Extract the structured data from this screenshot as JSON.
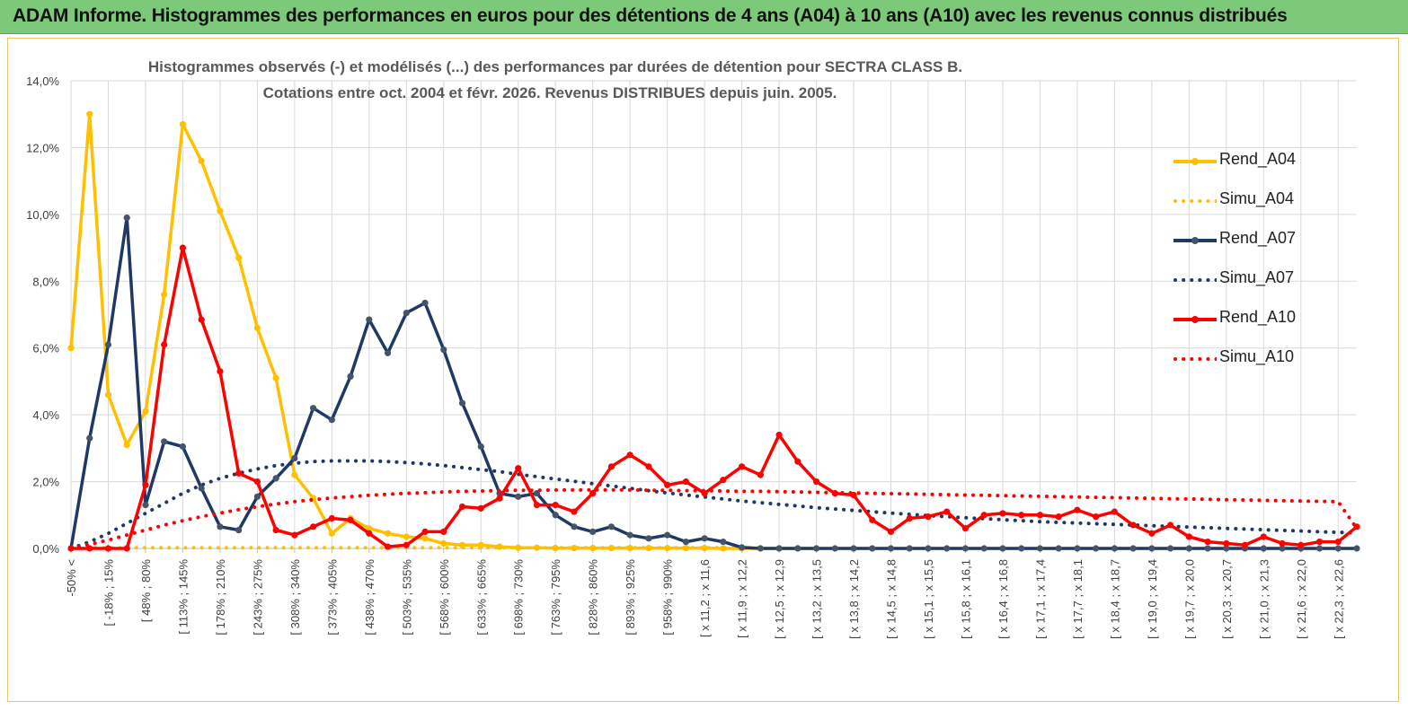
{
  "banner": {
    "title": "ADAM Informe. Histogrammes des performances en euros pour des détentions de 4 ans (A04) à 10 ans (A10) avec les revenus connus distribués",
    "color": "#7dc97a"
  },
  "chart_data": {
    "type": "line",
    "title_line1": "Histogrammes observés (-) et modélisés (...) des performances par durées de détention pour SECTRA CLASS B.",
    "title_line2": "Cotations entre oct. 2004 et févr. 2026. Revenus DISTRIBUES depuis juin. 2005.",
    "ylim": [
      0,
      14
    ],
    "y_ticks": [
      "0,0%",
      "2,0%",
      "4,0%",
      "6,0%",
      "8,0%",
      "10,0%",
      "12,0%",
      "14,0%"
    ],
    "y_tick_values": [
      0,
      2,
      4,
      6,
      8,
      10,
      12,
      14
    ],
    "x_labels": [
      "-50% <",
      "[ -18% ; 15%",
      "[ 48% ; 80%",
      "[ 113% ; 145%",
      "[ 178% ; 210%",
      "[ 243% ; 275%",
      "[ 308% ; 340%",
      "[ 373% ; 405%",
      "[ 438% ; 470%",
      "[ 503% ; 535%",
      "[ 568% ; 600%",
      "[ 633% ; 665%",
      "[ 698% ; 730%",
      "[ 763% ; 795%",
      "[ 828% ; 860%",
      "[ 893% ; 925%",
      "[ 958% ; 990%",
      "[ x 11,2 ; x 11,6",
      "[ x 11,9 ; x 12,2",
      "[ x 12,5 ; x 12,9",
      "[ x 13,2 ; x 13,5",
      "[ x 13,8 ; x 14,2",
      "[ x 14,5 ; x 14,8",
      "[ x 15,1 ; x 15,5",
      "[ x 15,8 ; x 16,1",
      "[ x 16,4 ; x 16,8",
      "[ x 17,1 ; x 17,4",
      "[ x 17,7 ; x 18,1",
      "[ x 18,4 ; x 18,7",
      "[ x 19,0 ; x 19,4",
      "[ x 19,7 ; x 20,0",
      "[ x 20,3 ; x 20,7",
      "[ x 21,0 ; x 21,3",
      "[ x 21,6 ; x 22,0",
      "[ x 22,3 ; x 22,6"
    ],
    "x_label_index_step": 2,
    "n_points": 70,
    "series": [
      {
        "name": "Rend_A04",
        "style": "solid",
        "color": "#ffc000",
        "values": [
          6.0,
          13.0,
          4.6,
          3.1,
          4.1,
          7.6,
          12.7,
          11.6,
          10.1,
          8.7,
          6.6,
          5.1,
          2.2,
          1.5,
          0.45,
          0.9,
          0.6,
          0.45,
          0.35,
          0.3,
          0.15,
          0.1,
          0.1,
          0.05,
          0.02,
          0.02,
          0.01,
          0.01,
          0.01,
          0.01,
          0.01,
          0.01,
          0.01,
          0.01,
          0.01,
          0.0,
          0.0,
          0.0,
          0.0,
          0.0,
          0.0
        ]
      },
      {
        "name": "Simu_A04",
        "style": "dotted",
        "color": "#ffc000",
        "values": [
          0.02,
          0.02,
          0.02,
          0.02,
          0.02,
          0.02,
          0.02,
          0.02,
          0.02,
          0.02,
          0.02,
          0.02,
          0.02,
          0.02,
          0.02,
          0.02,
          0.02,
          0.02,
          0.02,
          0.02,
          0.02,
          0.02,
          0.02,
          0.02,
          0.02,
          0.02,
          0.02,
          0.02,
          0.02,
          0.02,
          0.02,
          0.02,
          0.02,
          0.02,
          0.02,
          0.02,
          0.02,
          0.02
        ]
      },
      {
        "name": "Rend_A07",
        "style": "solid",
        "color": "#1f3864",
        "values": [
          0.0,
          3.3,
          6.1,
          9.9,
          1.3,
          3.2,
          3.05,
          1.8,
          0.65,
          0.55,
          1.55,
          2.1,
          2.7,
          4.2,
          3.85,
          5.15,
          6.85,
          5.85,
          7.05,
          7.35,
          5.95,
          4.35,
          3.05,
          1.65,
          1.55,
          1.65,
          1.0,
          0.65,
          0.5,
          0.65,
          0.4,
          0.3,
          0.4,
          0.2,
          0.3,
          0.2,
          0.03,
          0.0,
          0.0,
          0.0,
          0.0,
          0.0,
          0.0,
          0.0,
          0.0,
          0.0,
          0.0,
          0.0,
          0.0,
          0.0,
          0.0,
          0.0,
          0.0,
          0.0,
          0.0,
          0.0,
          0.0,
          0.0,
          0.0,
          0.0,
          0.0,
          0.0,
          0.0,
          0.0,
          0.0,
          0.0,
          0.0,
          0.0,
          0.0,
          0.0
        ]
      },
      {
        "name": "Simu_A07",
        "style": "dotted",
        "color": "#1f3864",
        "values": [
          0.0,
          0.2,
          0.45,
          0.75,
          1.05,
          1.35,
          1.65,
          1.9,
          2.1,
          2.25,
          2.38,
          2.48,
          2.55,
          2.6,
          2.62,
          2.62,
          2.62,
          2.6,
          2.57,
          2.53,
          2.48,
          2.42,
          2.36,
          2.3,
          2.22,
          2.15,
          2.08,
          2.01,
          1.94,
          1.87,
          1.8,
          1.73,
          1.66,
          1.6,
          1.54,
          1.48,
          1.42,
          1.37,
          1.32,
          1.27,
          1.22,
          1.18,
          1.14,
          1.1,
          1.06,
          1.02,
          0.98,
          0.95,
          0.92,
          0.89,
          0.86,
          0.83,
          0.8,
          0.78,
          0.76,
          0.74,
          0.72,
          0.7,
          0.68,
          0.66,
          0.64,
          0.62,
          0.6,
          0.58,
          0.56,
          0.54,
          0.52,
          0.5,
          0.48,
          0.47
        ]
      },
      {
        "name": "Rend_A10",
        "style": "solid",
        "color": "#ff0000",
        "values": [
          0.0,
          0.0,
          0.0,
          0.0,
          1.9,
          6.1,
          9.0,
          6.85,
          5.3,
          2.25,
          2.0,
          0.55,
          0.4,
          0.65,
          0.9,
          0.85,
          0.45,
          0.05,
          0.1,
          0.5,
          0.5,
          1.25,
          1.2,
          1.5,
          2.4,
          1.3,
          1.3,
          1.1,
          1.65,
          2.45,
          2.8,
          2.45,
          1.9,
          2.0,
          1.65,
          2.05,
          2.45,
          2.2,
          3.4,
          2.6,
          2.0,
          1.65,
          1.6,
          0.85,
          0.5,
          0.9,
          0.95,
          1.1,
          0.6,
          1.0,
          1.05,
          1.0,
          1.0,
          0.95,
          1.15,
          0.95,
          1.1,
          0.7,
          0.45,
          0.7,
          0.35,
          0.2,
          0.15,
          0.1,
          0.35,
          0.15,
          0.1,
          0.2,
          0.2,
          0.65
        ]
      },
      {
        "name": "Simu_A10",
        "style": "dotted",
        "color": "#ff0000",
        "values": [
          0.0,
          0.12,
          0.25,
          0.4,
          0.55,
          0.7,
          0.83,
          0.95,
          1.06,
          1.16,
          1.25,
          1.33,
          1.4,
          1.46,
          1.51,
          1.55,
          1.59,
          1.62,
          1.65,
          1.67,
          1.69,
          1.71,
          1.72,
          1.73,
          1.74,
          1.74,
          1.75,
          1.75,
          1.75,
          1.75,
          1.75,
          1.74,
          1.74,
          1.73,
          1.73,
          1.72,
          1.71,
          1.71,
          1.7,
          1.69,
          1.68,
          1.67,
          1.66,
          1.65,
          1.64,
          1.63,
          1.62,
          1.61,
          1.6,
          1.59,
          1.58,
          1.57,
          1.56,
          1.55,
          1.54,
          1.53,
          1.52,
          1.51,
          1.5,
          1.49,
          1.48,
          1.47,
          1.46,
          1.45,
          1.44,
          1.43,
          1.42,
          1.41,
          1.4,
          0.6
        ]
      }
    ]
  },
  "legend": {
    "items": [
      "Rend_A04",
      "Simu_A04",
      "Rend_A07",
      "Simu_A07",
      "Rend_A10",
      "Simu_A10"
    ]
  }
}
